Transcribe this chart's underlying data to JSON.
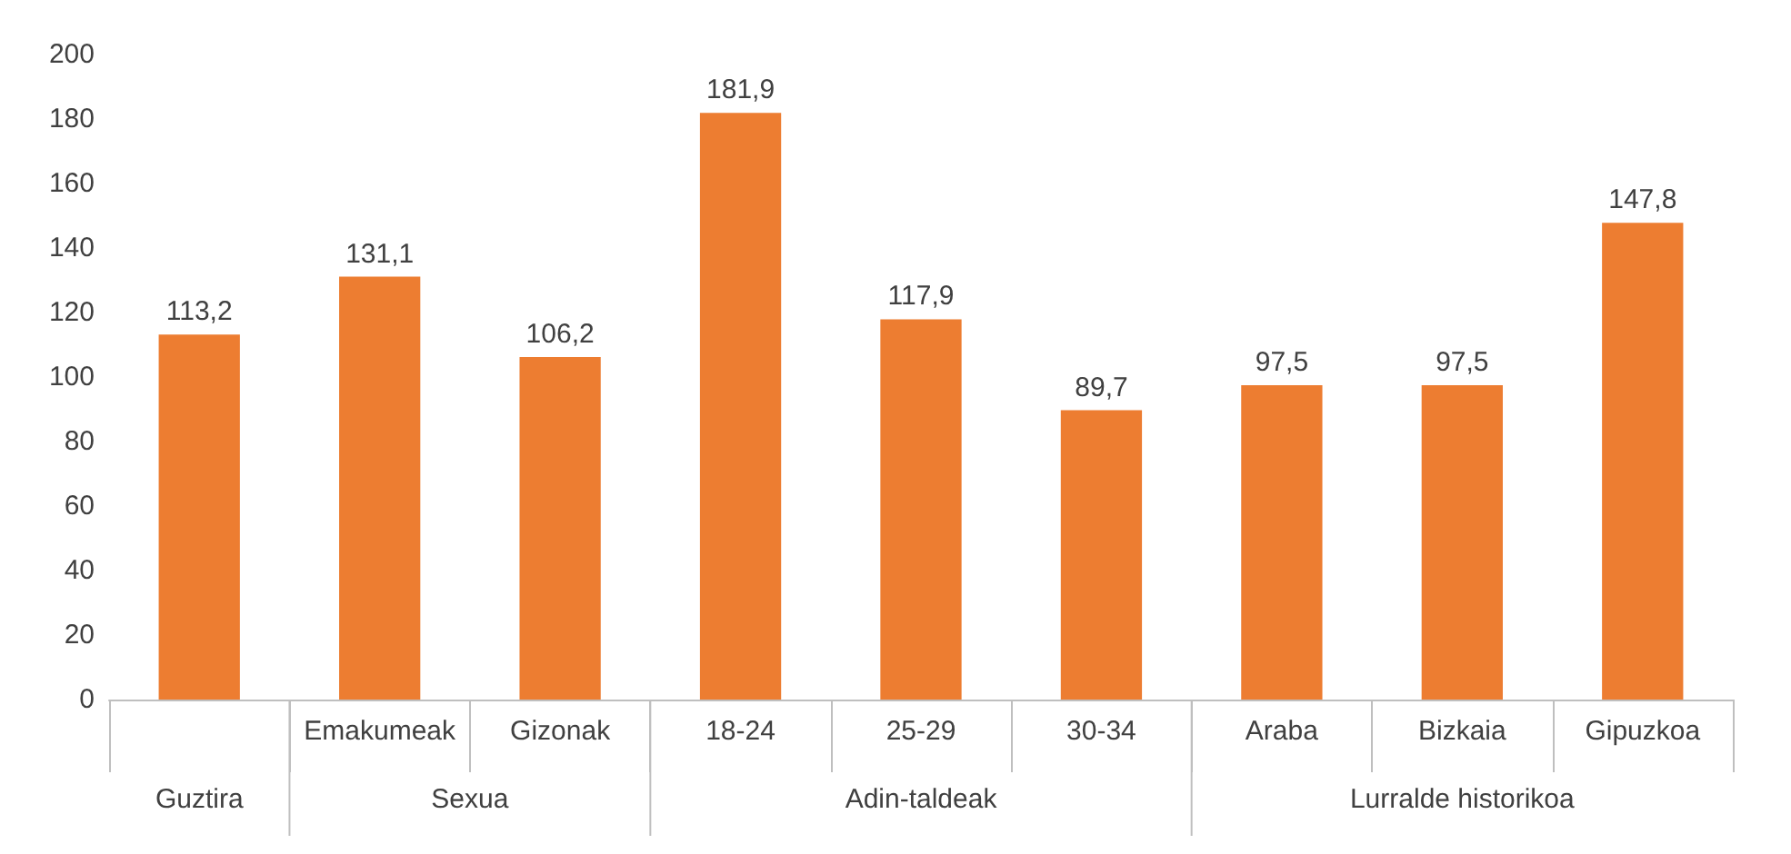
{
  "chart_data": {
    "type": "bar",
    "categories": [
      null,
      "Emakumeak",
      "Gizonak",
      "18-24",
      "25-29",
      "30-34",
      "Araba",
      "Bizkaia",
      "Gipuzkoa"
    ],
    "values": [
      113.2,
      131.1,
      106.2,
      181.9,
      117.9,
      89.7,
      97.5,
      97.5,
      147.8
    ],
    "value_labels": [
      "113,2",
      "131,1",
      "106,2",
      "181,9",
      "117,9",
      "89,7",
      "97,5",
      "97,5",
      "147,8"
    ],
    "color": "#ed7d31",
    "ylim": [
      0,
      200
    ],
    "yticks": [
      0,
      20,
      40,
      60,
      80,
      100,
      120,
      140,
      160,
      180,
      200
    ],
    "grid": false,
    "annotations": [
      "Guztira",
      "Sexua",
      "Adin-taldeak",
      "Lurralde historikoa"
    ]
  }
}
